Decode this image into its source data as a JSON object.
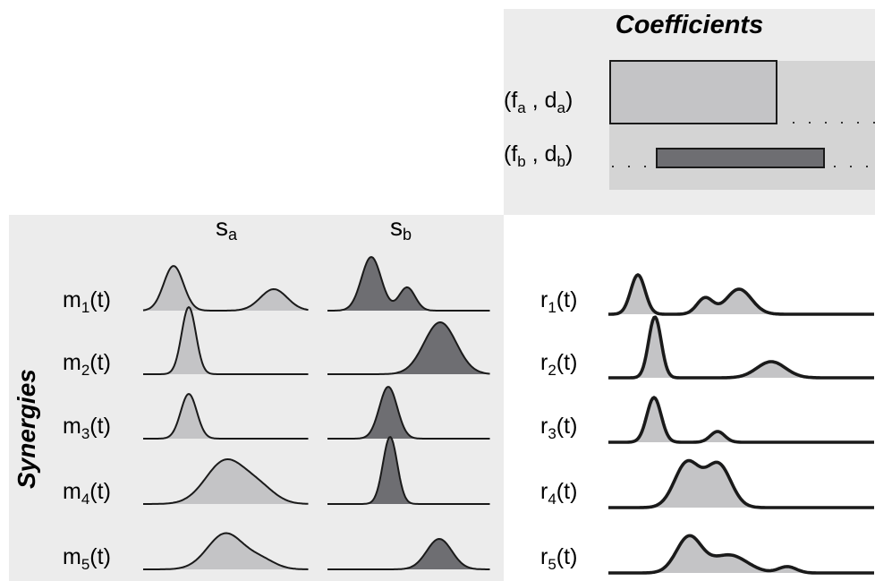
{
  "coefficients": {
    "title": "Coefficients",
    "rows": [
      {
        "label": "f",
        "sub1": "a",
        "mid": " , d",
        "sub2": "a"
      },
      {
        "label": "f",
        "sub1": "b",
        "mid": " , d",
        "sub2": "b"
      }
    ]
  },
  "synergies": {
    "title": "Synergies",
    "columns": [
      {
        "letter": "s",
        "sub": "a"
      },
      {
        "letter": "s",
        "sub": "b"
      }
    ],
    "muscles": [
      {
        "base": "m",
        "sub": "1",
        "suffix": "(t)"
      },
      {
        "base": "m",
        "sub": "2",
        "suffix": "(t)"
      },
      {
        "base": "m",
        "sub": "3",
        "suffix": "(t)"
      },
      {
        "base": "m",
        "sub": "4",
        "suffix": "(t)"
      },
      {
        "base": "m",
        "sub": "5",
        "suffix": "(t)"
      }
    ]
  },
  "reconstruction": {
    "signals": [
      {
        "base": "r",
        "sub": "1",
        "suffix": "(t)"
      },
      {
        "base": "r",
        "sub": "2",
        "suffix": "(t)"
      },
      {
        "base": "r",
        "sub": "3",
        "suffix": "(t)"
      },
      {
        "base": "r",
        "sub": "4",
        "suffix": "(t)"
      },
      {
        "base": "r",
        "sub": "5",
        "suffix": "(t)"
      }
    ]
  },
  "colors": {
    "panel": "#ececec",
    "band": "#d4d4d4",
    "light_fill": "#c4c4c6",
    "dark_fill": "#6e6e72",
    "stroke": "#1a1a1a"
  }
}
